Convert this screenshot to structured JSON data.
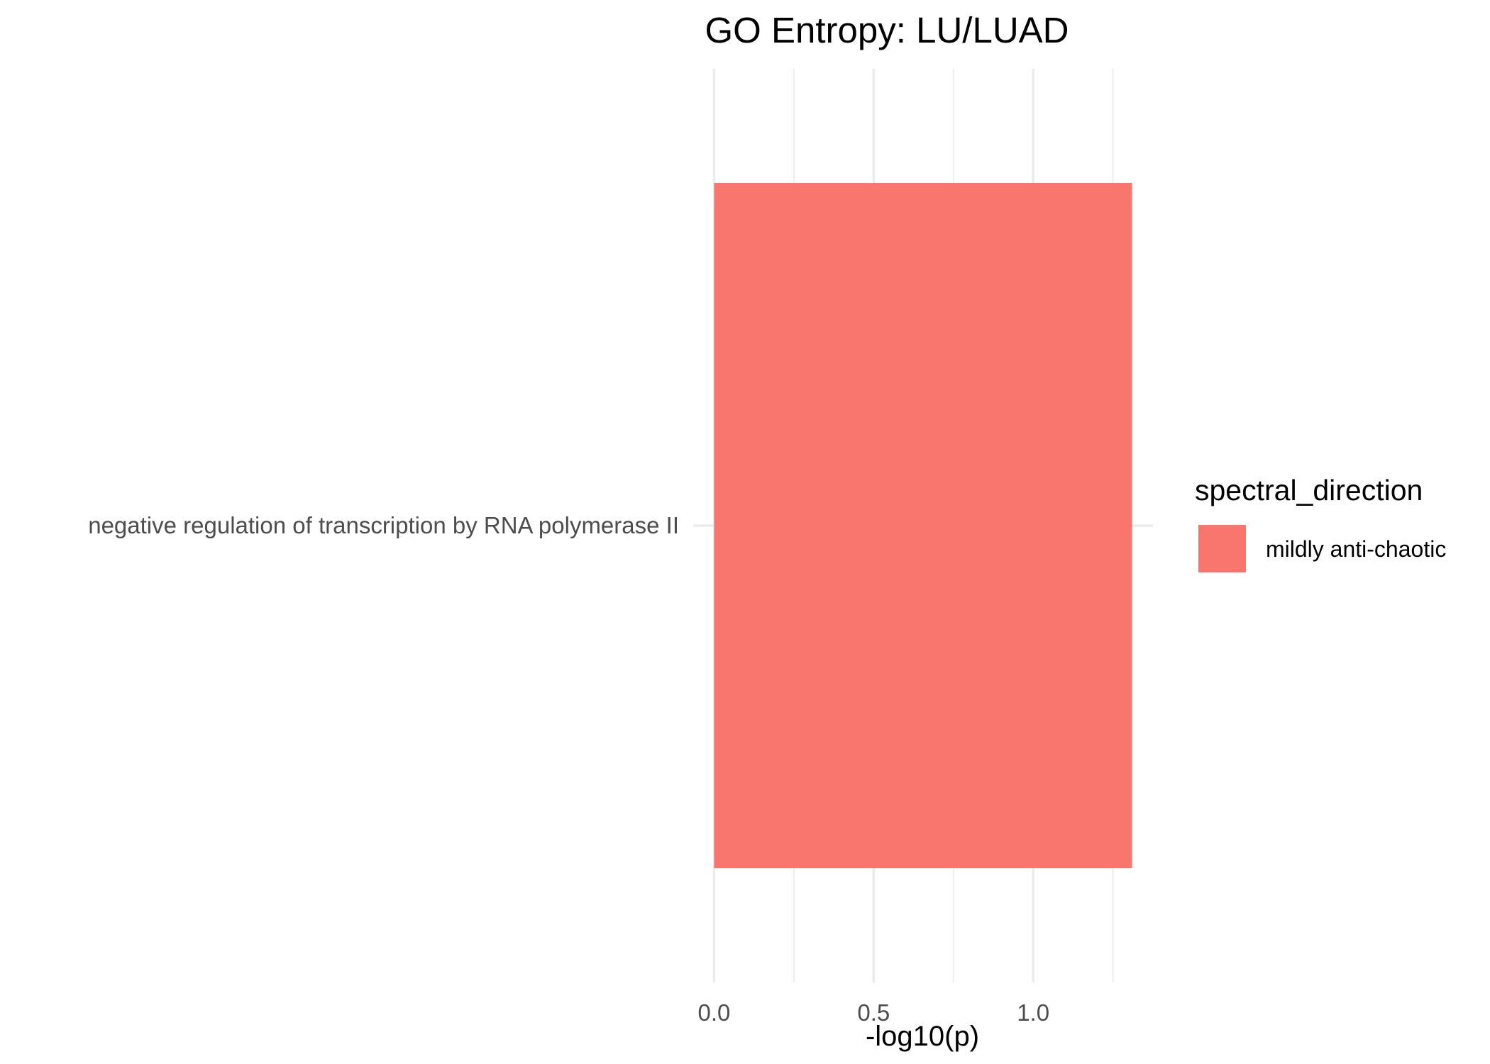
{
  "chart_data": {
    "type": "bar",
    "orientation": "horizontal",
    "title": "GO Entropy: LU/LUAD",
    "xlabel": "-log10(p)",
    "ylabel": "",
    "categories": [
      "negative regulation of transcription by RNA polymerase II"
    ],
    "series": [
      {
        "name": "mildly anti-chaotic",
        "values": [
          1.31
        ],
        "color": "#F8766D"
      }
    ],
    "xlim": [
      -0.0655,
      1.3755
    ],
    "x_ticks": [
      0.0,
      0.5,
      1.0
    ],
    "x_tick_labels": [
      "0.0",
      "0.5",
      "1.0"
    ],
    "x_minor_ticks": [
      0.25,
      0.75,
      1.25
    ],
    "grid": true,
    "legend": {
      "title": "spectral_direction",
      "position": "right",
      "items": [
        "mildly anti-chaotic"
      ]
    }
  }
}
